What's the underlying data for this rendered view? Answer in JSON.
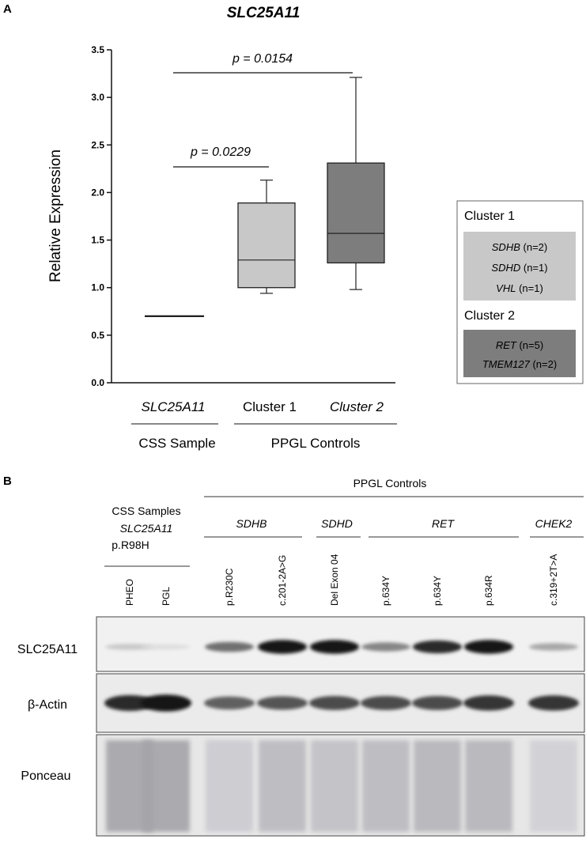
{
  "panel_a": {
    "label": "A",
    "title": "SLC25A11",
    "pvalues": [
      "p = 0.0229",
      "p = 0.0154"
    ],
    "group_labels": [
      "CSS Sample",
      "PPGL Controls"
    ],
    "legend": {
      "cluster1": {
        "title": "Cluster 1",
        "colour": "#c8c8c8",
        "items": [
          {
            "gene": "SDHB",
            "count": "(n=2)"
          },
          {
            "gene": "SDHD",
            "count": "(n=1)"
          },
          {
            "gene": "VHL",
            "count": "(n=1)"
          }
        ]
      },
      "cluster2": {
        "title": "Cluster 2",
        "colour": "#7d7d7d",
        "items": [
          {
            "gene": "RET",
            "count": "(n=5)"
          },
          {
            "gene": "TMEM127",
            "count": "(n=2)"
          }
        ]
      }
    }
  },
  "chart_data": {
    "type": "box",
    "title": "SLC25A11",
    "ylabel": "Relative Expression",
    "xlabel": "",
    "ylim": [
      0,
      3.5
    ],
    "yticks": [
      "0.0",
      "0.5",
      "1.0",
      "1.5",
      "2.0",
      "2.5",
      "3.0",
      "3.5"
    ],
    "categories": [
      "SLC25A11",
      "Cluster 1",
      "Cluster 2"
    ],
    "category_italic": [
      true,
      false,
      true
    ],
    "series": [
      {
        "category": "SLC25A11",
        "kind": "single",
        "value": 0.7
      },
      {
        "category": "Cluster 1",
        "kind": "box",
        "min": 0.94,
        "q1": 1.0,
        "median": 1.29,
        "q3": 1.89,
        "max": 2.13,
        "colour": "#c8c8c8"
      },
      {
        "category": "Cluster 2",
        "kind": "box",
        "min": 0.98,
        "q1": 1.26,
        "median": 1.57,
        "q3": 2.31,
        "max": 3.21,
        "colour": "#7d7d7d"
      }
    ],
    "comparisons": [
      {
        "from": "SLC25A11",
        "to": "Cluster 1",
        "label": "p = 0.0229"
      },
      {
        "from": "SLC25A11",
        "to": "Cluster 2",
        "label": "p = 0.0154"
      }
    ],
    "grid": false,
    "legend_position": "right"
  },
  "panel_b": {
    "label": "B",
    "ppgl_header": "PPGL Controls",
    "css_header": "CSS Samples",
    "css_gene": "SLC25A11",
    "css_variant": "p.R98H",
    "genes": [
      "SDHB",
      "SDHD",
      "RET",
      "CHEK2"
    ],
    "lanes": [
      "PHEO",
      "PGL",
      "p.R230C",
      "c.201-2A>G",
      "Del Exon 04",
      "p.634Y",
      "p.634Y",
      "p.634R",
      "c.319+2T>A"
    ],
    "rows": [
      "SLC25A11",
      "β-Actin",
      "Ponceau"
    ],
    "slc25a11_band_intensity": [
      0.15,
      0.06,
      0.55,
      0.95,
      0.95,
      0.45,
      0.85,
      0.95,
      0.3
    ],
    "actin_band_intensity": [
      0.85,
      0.95,
      0.6,
      0.65,
      0.7,
      0.7,
      0.7,
      0.8,
      0.8
    ],
    "ponceau_intensity": [
      0.6,
      0.6,
      0.25,
      0.4,
      0.35,
      0.4,
      0.45,
      0.45,
      0.2
    ]
  }
}
